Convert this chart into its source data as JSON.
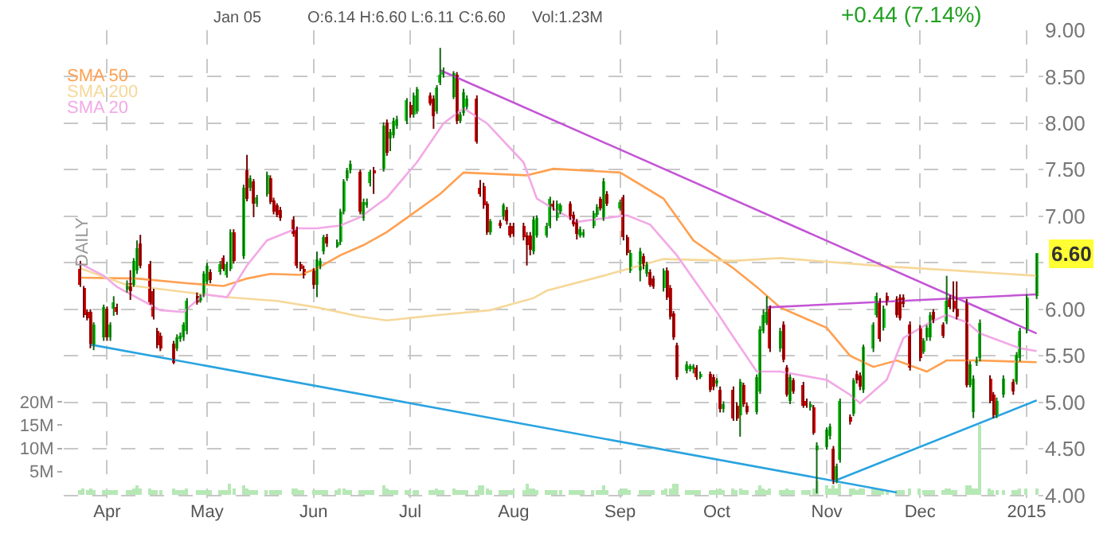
{
  "chart_data": {
    "type": "candlestick",
    "annotations": [
      "Jan 05",
      "O:6.14 H:6.60 L:6.11 C:6.60",
      "Vol:1.23M",
      "+0.44 (7.14%)",
      "DAILY",
      "6.60"
    ],
    "colors": [
      "#e00000",
      "#e00000",
      "#e00000",
      "#e00000",
      "#1fd21f",
      "#1fd21f",
      "#e00000",
      "#1fd21f",
      "#1fd21f",
      "#e00000",
      "#1fd21f",
      "#e00000",
      "#1fd21f",
      "#1fd21f",
      "#e00000",
      "#e00000",
      "#e00000",
      "#e00000",
      "#e00000",
      "#e00000",
      "#1fd21f",
      "#1fd21f",
      "#1fd21f",
      "#1fd21f",
      "#e00000",
      "#1fd21f",
      "#1fd21f",
      "#1fd21f",
      "#e00000",
      "#1fd21f",
      "#e00000",
      "#1fd21f",
      "#1fd21f",
      "#e00000",
      "#1fd21f",
      "#e00000",
      "#1fd21f",
      "#e00000",
      "#1fd21f",
      "#1fd21f",
      "#e00000",
      "#e00000",
      "#e00000",
      "#e00000",
      "#e00000",
      "#e00000",
      "#e00000",
      "#e00000",
      "#e00000",
      "#1fd21f",
      "#1fd21f",
      "#1fd21f",
      "#e00000",
      "#1fd21f",
      "#1fd21f",
      "#1fd21f",
      "#1fd21f",
      "#1fd21f",
      "#e00000",
      "#1fd21f",
      "#1fd21f",
      "#1fd21f",
      "#e00000",
      "#1fd21f",
      "#e00000",
      "#1fd21f",
      "#1fd21f",
      "#1fd21f",
      "#1fd21f",
      "#e00000",
      "#1fd21f",
      "#1fd21f",
      "#e00000",
      "#e00000",
      "#1fd21f",
      "#1fd21f",
      "#1fd21f",
      "#1fd21f",
      "#e00000",
      "#1fd21f",
      "#1fd21f",
      "#1fd21f",
      "#e00000",
      "#e00000",
      "#e00000",
      "#e00000",
      "#1fd21f",
      "#e00000",
      "#1fd21f",
      "#e00000",
      "#e00000",
      "#e00000",
      "#e00000",
      "#e00000",
      "#e00000",
      "#1fd21f",
      "#1fd21f",
      "#1fd21f",
      "#1fd21f",
      "#e00000",
      "#1fd21f",
      "#1fd21f",
      "#e00000",
      "#e00000",
      "#e00000",
      "#1fd21f",
      "#1fd21f",
      "#1fd21f",
      "#1fd21f",
      "#e00000",
      "#1fd21f",
      "#e00000",
      "#1fd21f",
      "#e00000",
      "#e00000",
      "#1fd21f",
      "#1fd21f",
      "#e00000",
      "#1fd21f",
      "#e00000",
      "#e00000",
      "#1fd21f",
      "#e00000",
      "#e00000",
      "#e00000",
      "#e00000",
      "#1fd21f",
      "#1fd21f",
      "#1fd21f",
      "#e00000",
      "#1fd21f",
      "#e00000",
      "#e00000",
      "#1fd21f",
      "#e00000",
      "#1fd21f",
      "#e00000",
      "#e00000",
      "#1fd21f",
      "#e00000",
      "#e00000",
      "#1fd21f",
      "#1fd21f",
      "#1fd21f",
      "#1fd21f",
      "#e00000",
      "#1fd21f",
      "#e00000",
      "#e00000",
      "#1fd21f",
      "#e00000",
      "#e00000",
      "#e00000",
      "#1fd21f",
      "#e00000",
      "#1fd21f",
      "#1fd21f",
      "#1fd21f",
      "#e00000",
      "#1fd21f",
      "#1fd21f",
      "#e00000",
      "#1fd21f",
      "#e00000",
      "#e00000",
      "#1fd21f",
      "#1fd21f",
      "#1fd21f",
      "#e00000",
      "#1fd21f",
      "#e00000",
      "#e00000",
      "#e00000",
      "#e00000",
      "#e00000",
      "#e00000",
      "#1fd21f",
      "#1fd21f",
      "#1fd21f",
      "#e00000",
      "#e00000",
      "#1fd21f",
      "#e00000",
      "#e00000",
      "#e00000",
      "#e00000",
      "#1fd21f",
      "#1fd21f",
      "#1fd21f",
      "#1fd21f",
      "#e00000",
      "#e00000",
      "#1fd21f",
      "#1fd21f",
      "#e00000",
      "#1fd21f",
      "#1fd21f",
      "#1fd21f",
      "#1fd21f"
    ],
    "x": [
      "2014-03-24",
      "2014-03-25",
      "2014-03-26",
      "2014-03-27",
      "2014-03-28",
      "2014-03-31",
      "2014-04-01",
      "2014-04-02",
      "2014-04-03",
      "2014-04-04",
      "2014-04-07",
      "2014-04-08",
      "2014-04-09",
      "2014-04-10",
      "2014-04-11",
      "2014-04-14",
      "2014-04-15",
      "2014-04-16",
      "2014-04-17",
      "2014-04-21",
      "2014-04-22",
      "2014-04-23",
      "2014-04-24",
      "2014-04-25",
      "2014-04-28",
      "2014-04-29",
      "2014-04-30",
      "2014-05-01",
      "2014-05-02",
      "2014-05-05",
      "2014-05-06",
      "2014-05-07",
      "2014-05-08",
      "2014-05-09",
      "2014-05-12",
      "2014-05-13",
      "2014-05-14",
      "2014-05-15",
      "2014-05-16",
      "2014-05-19",
      "2014-05-20",
      "2014-05-21",
      "2014-05-22",
      "2014-05-23",
      "2014-05-27",
      "2014-05-28",
      "2014-05-29",
      "2014-05-30",
      "2014-06-02",
      "2014-06-03",
      "2014-06-04",
      "2014-06-05",
      "2014-06-06",
      "2014-06-09",
      "2014-06-10",
      "2014-06-11",
      "2014-06-12",
      "2014-06-13",
      "2014-06-16",
      "2014-06-17",
      "2014-06-18",
      "2014-06-19",
      "2014-06-20",
      "2014-06-23",
      "2014-06-24",
      "2014-06-25",
      "2014-06-26",
      "2014-06-27",
      "2014-06-30",
      "2014-07-01",
      "2014-07-02",
      "2014-07-03",
      "2014-07-07",
      "2014-07-08",
      "2014-07-09",
      "2014-07-10",
      "2014-07-11",
      "2014-07-14",
      "2014-07-15",
      "2014-07-16",
      "2014-07-17",
      "2014-07-18",
      "2014-07-21",
      "2014-07-22",
      "2014-07-23",
      "2014-07-24",
      "2014-07-25",
      "2014-07-28",
      "2014-07-29",
      "2014-07-30",
      "2014-07-31",
      "2014-08-01",
      "2014-08-04",
      "2014-08-05",
      "2014-08-06",
      "2014-08-07",
      "2014-08-08",
      "2014-08-11",
      "2014-08-12",
      "2014-08-13",
      "2014-08-14",
      "2014-08-15",
      "2014-08-18",
      "2014-08-19",
      "2014-08-20",
      "2014-08-21",
      "2014-08-22",
      "2014-08-25",
      "2014-08-26",
      "2014-08-27",
      "2014-08-28",
      "2014-08-29",
      "2014-09-02",
      "2014-09-03",
      "2014-09-04",
      "2014-09-05",
      "2014-09-08",
      "2014-09-09",
      "2014-09-10",
      "2014-09-11",
      "2014-09-12",
      "2014-09-15",
      "2014-09-16",
      "2014-09-17",
      "2014-09-18",
      "2014-09-19",
      "2014-09-22",
      "2014-09-23",
      "2014-09-24",
      "2014-09-25",
      "2014-09-26",
      "2014-09-29",
      "2014-09-30",
      "2014-10-01",
      "2014-10-02",
      "2014-10-03",
      "2014-10-06",
      "2014-10-07",
      "2014-10-08",
      "2014-10-09",
      "2014-10-10",
      "2014-10-13",
      "2014-10-14",
      "2014-10-15",
      "2014-10-16",
      "2014-10-17",
      "2014-10-20",
      "2014-10-21",
      "2014-10-22",
      "2014-10-23",
      "2014-10-24",
      "2014-10-27",
      "2014-10-28",
      "2014-10-29",
      "2014-10-30",
      "2014-10-31",
      "2014-11-03",
      "2014-11-04",
      "2014-11-05",
      "2014-11-06",
      "2014-11-07",
      "2014-11-10",
      "2014-11-11",
      "2014-11-12",
      "2014-11-13",
      "2014-11-14",
      "2014-11-17",
      "2014-11-18",
      "2014-11-19",
      "2014-11-20",
      "2014-11-21",
      "2014-11-24",
      "2014-11-25",
      "2014-11-26",
      "2014-11-28",
      "2014-12-01",
      "2014-12-02",
      "2014-12-03",
      "2014-12-04",
      "2014-12-05",
      "2014-12-08",
      "2014-12-09",
      "2014-12-10",
      "2014-12-11",
      "2014-12-12",
      "2014-12-15",
      "2014-12-16",
      "2014-12-17",
      "2014-12-18",
      "2014-12-19",
      "2014-12-22",
      "2014-12-23",
      "2014-12-24",
      "2014-12-26",
      "2014-12-29",
      "2014-12-30",
      "2014-12-31",
      "2015-01-02",
      "2015-01-05"
    ],
    "ohlc": [
      [
        6.44,
        6.52,
        6.24,
        6.27
      ],
      [
        6.22,
        6.25,
        5.91,
        5.94
      ],
      [
        5.97,
        6.0,
        5.88,
        5.91
      ],
      [
        5.97,
        6.0,
        5.58,
        5.63
      ],
      [
        5.61,
        5.86,
        5.56,
        5.83
      ],
      [
        5.69,
        6.05,
        5.66,
        6.02
      ],
      [
        6.0,
        6.03,
        5.66,
        5.69
      ],
      [
        5.69,
        5.86,
        5.66,
        5.83
      ],
      [
        6.01,
        6.14,
        5.93,
        6.08
      ],
      [
        6.03,
        6.06,
        5.94,
        5.97
      ],
      [
        6.21,
        6.31,
        6.18,
        6.28
      ],
      [
        6.28,
        6.42,
        6.1,
        6.19
      ],
      [
        6.27,
        6.55,
        6.24,
        6.52
      ],
      [
        6.41,
        6.74,
        6.38,
        6.66
      ],
      [
        6.7,
        6.8,
        6.44,
        6.47
      ],
      [
        6.49,
        6.52,
        6.05,
        6.08
      ],
      [
        6.19,
        6.22,
        5.89,
        5.92
      ],
      [
        5.77,
        5.8,
        5.58,
        5.61
      ],
      [
        5.72,
        5.75,
        5.55,
        5.58
      ],
      [
        5.63,
        5.66,
        5.41,
        5.43
      ],
      [
        5.58,
        5.73,
        5.55,
        5.7
      ],
      [
        5.68,
        5.75,
        5.65,
        5.72
      ],
      [
        5.69,
        5.86,
        5.66,
        5.83
      ],
      [
        5.76,
        6.12,
        5.73,
        6.09
      ],
      [
        6.15,
        6.18,
        6.05,
        6.08
      ],
      [
        6.1,
        6.16,
        6.07,
        6.13
      ],
      [
        6.16,
        6.41,
        6.13,
        6.38
      ],
      [
        6.3,
        6.5,
        6.27,
        6.47
      ],
      [
        6.4,
        6.43,
        6.28,
        6.31
      ],
      [
        6.4,
        6.52,
        6.37,
        6.49
      ],
      [
        6.55,
        6.58,
        6.41,
        6.44
      ],
      [
        6.37,
        6.51,
        6.34,
        6.48
      ],
      [
        6.44,
        6.86,
        6.41,
        6.83
      ],
      [
        6.83,
        6.86,
        6.49,
        6.52
      ],
      [
        6.57,
        7.34,
        6.54,
        7.31
      ],
      [
        7.5,
        7.66,
        7.16,
        7.19
      ],
      [
        7.3,
        7.44,
        7.27,
        7.41
      ],
      [
        7.37,
        7.4,
        6.99,
        7.13
      ],
      [
        7.13,
        7.23,
        7.1,
        7.2
      ],
      [
        7.24,
        7.48,
        7.21,
        7.45
      ],
      [
        7.41,
        7.44,
        7.13,
        7.16
      ],
      [
        7.17,
        7.2,
        7.02,
        7.05
      ],
      [
        7.11,
        7.14,
        6.99,
        7.02
      ],
      [
        7.07,
        7.1,
        6.95,
        6.98
      ],
      [
        6.97,
        7.0,
        6.78,
        6.81
      ],
      [
        6.86,
        6.89,
        6.44,
        6.47
      ],
      [
        6.48,
        6.51,
        6.41,
        6.44
      ],
      [
        6.44,
        6.47,
        6.33,
        6.36
      ],
      [
        6.41,
        6.44,
        6.22,
        6.27
      ],
      [
        6.27,
        6.62,
        6.13,
        6.53
      ],
      [
        6.46,
        6.55,
        6.43,
        6.52
      ],
      [
        6.62,
        6.8,
        6.59,
        6.77
      ],
      [
        6.78,
        6.81,
        6.67,
        6.7
      ],
      [
        6.69,
        6.75,
        6.66,
        6.72
      ],
      [
        6.72,
        7.08,
        6.69,
        7.05
      ],
      [
        7.05,
        7.4,
        7.02,
        7.37
      ],
      [
        7.41,
        7.52,
        7.38,
        7.49
      ],
      [
        7.49,
        7.6,
        7.46,
        7.57
      ],
      [
        7.47,
        7.5,
        7.02,
        7.05
      ],
      [
        6.98,
        7.19,
        6.95,
        7.16
      ],
      [
        7.12,
        7.19,
        7.09,
        7.16
      ],
      [
        7.35,
        7.5,
        7.32,
        7.47
      ],
      [
        7.5,
        7.53,
        7.24,
        7.46
      ],
      [
        7.51,
        8.01,
        7.48,
        7.98
      ],
      [
        8.01,
        8.04,
        7.65,
        7.68
      ],
      [
        7.83,
        7.94,
        7.7,
        7.91
      ],
      [
        7.87,
        8.06,
        7.84,
        8.03
      ],
      [
        7.97,
        8.08,
        7.94,
        8.05
      ],
      [
        8.02,
        8.27,
        7.99,
        8.24
      ],
      [
        8.2,
        8.23,
        8.06,
        8.09
      ],
      [
        8.09,
        8.33,
        8.06,
        8.3
      ],
      [
        8.13,
        8.39,
        8.1,
        8.36
      ],
      [
        8.3,
        8.33,
        8.19,
        8.22
      ],
      [
        8.27,
        8.3,
        7.94,
        8.08
      ],
      [
        8.13,
        8.41,
        8.1,
        8.38
      ],
      [
        8.44,
        8.81,
        8.41,
        8.52
      ],
      [
        8.52,
        8.6,
        8.49,
        8.57
      ],
      [
        8.29,
        8.56,
        8.26,
        8.53
      ],
      [
        8.52,
        8.55,
        7.99,
        8.02
      ],
      [
        8.03,
        8.12,
        8.0,
        8.09
      ],
      [
        8.11,
        8.37,
        8.08,
        8.34
      ],
      [
        8.18,
        8.3,
        8.15,
        8.27
      ],
      [
        8.27,
        8.3,
        7.78,
        7.81
      ],
      [
        7.31,
        7.39,
        7.21,
        7.24
      ],
      [
        7.33,
        7.36,
        7.08,
        7.11
      ],
      [
        7.13,
        7.16,
        6.8,
        6.83
      ],
      [
        6.83,
        6.97,
        6.8,
        6.94
      ],
      [
        6.93,
        6.96,
        6.87,
        6.9
      ],
      [
        6.99,
        7.14,
        6.96,
        7.11
      ],
      [
        7.07,
        7.1,
        6.91,
        6.94
      ],
      [
        6.9,
        6.93,
        6.77,
        6.8
      ],
      [
        6.9,
        6.93,
        6.78,
        6.81
      ],
      [
        6.9,
        6.93,
        6.74,
        6.77
      ],
      [
        6.8,
        6.83,
        6.47,
        6.69
      ],
      [
        6.8,
        6.83,
        6.58,
        6.64
      ],
      [
        6.62,
        7.0,
        6.59,
        6.97
      ],
      [
        6.8,
        7.01,
        6.77,
        6.98
      ],
      [
        6.8,
        6.93,
        6.77,
        6.9
      ],
      [
        6.9,
        7.21,
        6.87,
        7.18
      ],
      [
        7.14,
        7.17,
        7.06,
        7.09
      ],
      [
        6.98,
        7.17,
        6.95,
        7.14
      ],
      [
        7.05,
        7.14,
        7.02,
        7.11
      ],
      [
        7.13,
        7.16,
        6.96,
        6.99
      ],
      [
        7.02,
        7.05,
        6.89,
        6.92
      ],
      [
        6.94,
        6.97,
        6.75,
        6.81
      ],
      [
        6.8,
        6.89,
        6.77,
        6.86
      ],
      [
        6.8,
        6.86,
        6.77,
        6.83
      ],
      [
        6.9,
        7.06,
        6.87,
        7.03
      ],
      [
        7.02,
        7.13,
        6.99,
        7.1
      ],
      [
        7.18,
        7.21,
        7.06,
        7.09
      ],
      [
        6.98,
        7.41,
        6.95,
        7.38
      ],
      [
        7.24,
        7.27,
        7.11,
        7.14
      ],
      [
        7.09,
        7.18,
        7.06,
        7.15
      ],
      [
        7.2,
        7.23,
        6.74,
        6.77
      ],
      [
        6.77,
        6.8,
        6.58,
        6.61
      ],
      [
        6.42,
        6.64,
        6.39,
        6.61
      ],
      [
        6.42,
        6.66,
        6.3,
        6.63
      ],
      [
        6.57,
        6.6,
        6.43,
        6.46
      ],
      [
        6.38,
        6.51,
        6.35,
        6.48
      ],
      [
        6.4,
        6.43,
        6.24,
        6.27
      ],
      [
        6.33,
        6.36,
        6.22,
        6.25
      ],
      [
        6.22,
        6.44,
        6.19,
        6.41
      ],
      [
        6.42,
        6.45,
        6.1,
        6.13
      ],
      [
        6.23,
        6.26,
        5.89,
        5.92
      ],
      [
        5.95,
        5.98,
        5.67,
        5.7
      ],
      [
        5.61,
        5.64,
        5.24,
        5.27
      ],
      [
        5.34,
        5.44,
        5.31,
        5.41
      ],
      [
        5.36,
        5.41,
        5.33,
        5.38
      ],
      [
        5.36,
        5.41,
        5.31,
        5.38
      ],
      [
        5.37,
        5.4,
        5.24,
        5.27
      ],
      [
        5.28,
        5.33,
        5.25,
        5.3
      ],
      [
        5.3,
        5.33,
        5.11,
        5.14
      ],
      [
        5.27,
        5.3,
        5.13,
        5.16
      ],
      [
        5.2,
        5.26,
        5.17,
        5.24
      ],
      [
        5.14,
        5.17,
        4.89,
        4.92
      ],
      [
        4.92,
        5.01,
        4.89,
        4.98
      ],
      [
        5.14,
        5.17,
        4.8,
        4.83
      ],
      [
        4.97,
        5.0,
        4.8,
        4.83
      ],
      [
        4.86,
        5.25,
        4.63,
        5.22
      ],
      [
        5.18,
        5.21,
        4.95,
        4.98
      ],
      [
        4.97,
        5.0,
        4.87,
        4.9
      ],
      [
        4.9,
        5.3,
        4.87,
        5.27
      ],
      [
        5.12,
        5.82,
        5.09,
        5.79
      ],
      [
        5.77,
        6.0,
        5.74,
        5.94
      ],
      [
        5.86,
        6.14,
        5.83,
        5.98
      ],
      [
        6.01,
        6.04,
        5.54,
        5.57
      ],
      [
        5.57,
        5.8,
        5.54,
        5.77
      ],
      [
        5.84,
        5.87,
        5.43,
        5.46
      ],
      [
        5.37,
        5.4,
        5.06,
        5.09
      ],
      [
        5.01,
        5.3,
        4.98,
        5.27
      ],
      [
        5.23,
        5.26,
        5.09,
        5.12
      ],
      [
        5.19,
        5.22,
        4.94,
        4.97
      ],
      [
        5.01,
        5.04,
        4.94,
        4.97
      ],
      [
        4.94,
        5.01,
        4.91,
        4.98
      ],
      [
        4.94,
        4.97,
        4.65,
        4.68
      ],
      [
        4.48,
        4.57,
        4.02,
        4.54
      ],
      [
        4.52,
        4.73,
        4.49,
        4.7
      ],
      [
        4.63,
        4.77,
        4.6,
        4.74
      ],
      [
        4.5,
        4.53,
        4.12,
        4.15
      ],
      [
        4.16,
        4.34,
        4.13,
        4.31
      ],
      [
        4.38,
        5.04,
        4.35,
        5.01
      ],
      [
        4.84,
        4.87,
        4.76,
        4.79
      ],
      [
        4.88,
        5.26,
        4.85,
        5.23
      ],
      [
        5.31,
        5.34,
        5.2,
        5.23
      ],
      [
        5.29,
        5.32,
        5.13,
        5.16
      ],
      [
        5.13,
        5.62,
        5.1,
        5.59
      ],
      [
        5.57,
        5.86,
        5.54,
        5.83
      ],
      [
        5.94,
        6.18,
        5.91,
        6.15
      ],
      [
        6.09,
        6.12,
        5.65,
        5.68
      ],
      [
        5.8,
        6.04,
        5.77,
        6.01
      ],
      [
        6.15,
        6.18,
        6.04,
        6.07
      ],
      [
        6.11,
        6.14,
        5.91,
        5.94
      ],
      [
        6.13,
        6.16,
        5.88,
        5.91
      ],
      [
        6.13,
        6.16,
        6.02,
        6.05
      ],
      [
        5.84,
        5.87,
        5.34,
        5.37
      ],
      [
        5.8,
        5.83,
        5.44,
        5.47
      ],
      [
        5.55,
        5.69,
        5.52,
        5.66
      ],
      [
        5.69,
        5.83,
        5.66,
        5.8
      ],
      [
        5.69,
        5.97,
        5.66,
        5.94
      ],
      [
        5.97,
        6.0,
        5.85,
        5.88
      ],
      [
        5.83,
        5.86,
        5.69,
        5.72
      ],
      [
        5.87,
        6.36,
        5.84,
        6.09
      ],
      [
        6.12,
        6.15,
        6.0,
        6.03
      ],
      [
        6.09,
        6.3,
        5.97,
        6.0
      ],
      [
        6.01,
        6.3,
        5.89,
        5.92
      ],
      [
        6.08,
        6.11,
        5.16,
        5.19
      ],
      [
        5.19,
        5.44,
        5.16,
        5.41
      ],
      [
        4.9,
        5.29,
        4.83,
        5.26
      ],
      [
        5.42,
        5.49,
        5.39,
        5.46
      ],
      [
        5.47,
        5.89,
        5.44,
        5.86
      ],
      [
        5.26,
        5.29,
        4.99,
        5.02
      ],
      [
        5.08,
        5.11,
        4.83,
        4.86
      ],
      [
        4.86,
        5.05,
        4.83,
        5.02
      ],
      [
        5.08,
        5.29,
        5.05,
        5.26
      ],
      [
        5.22,
        5.25,
        5.08,
        5.11
      ],
      [
        5.22,
        5.54,
        5.19,
        5.51
      ],
      [
        5.47,
        5.8,
        5.44,
        5.77
      ],
      [
        5.77,
        6.16,
        5.74,
        6.13
      ],
      [
        6.14,
        6.6,
        6.11,
        6.6
      ]
    ],
    "series": [
      {
        "type": "bar",
        "axis": "y2",
        "color": "#b6e8b6",
        "values": [
          1,
          1.5,
          1,
          1.5,
          1,
          1,
          1,
          1,
          1,
          1,
          1,
          1,
          1.5,
          2,
          1.5,
          1.5,
          1,
          1,
          1,
          1.5,
          1,
          1,
          1,
          1.5,
          1,
          1,
          1,
          1,
          1,
          1,
          1,
          1,
          2.5,
          1.5,
          2,
          1.5,
          1,
          1,
          1,
          1,
          1,
          1,
          1,
          1,
          1.5,
          1.5,
          1,
          1,
          1,
          1,
          1,
          1,
          1,
          1,
          1.5,
          1.5,
          1,
          1,
          1,
          1,
          1,
          1,
          1,
          2,
          1.5,
          1,
          1,
          1,
          1,
          1,
          1,
          1,
          1,
          1,
          1.5,
          1,
          1,
          1.5,
          1,
          1,
          1,
          1,
          1,
          2,
          2,
          1.5,
          1,
          1,
          1,
          1,
          1,
          1,
          1,
          2.5,
          1.5,
          1.5,
          1,
          1,
          1,
          1,
          1,
          1,
          1,
          1,
          1,
          1,
          1,
          1,
          1,
          1,
          2,
          1,
          1,
          1.5,
          1.5,
          1,
          1,
          1,
          1,
          1,
          1,
          1,
          1.5,
          1.5,
          2.5,
          2.5,
          1,
          1,
          1,
          1,
          1,
          1,
          1,
          1,
          1.5,
          1,
          1.5,
          1,
          1.5,
          1,
          1,
          1,
          2,
          1.5,
          1,
          1.5,
          1,
          1,
          1.5,
          1,
          1,
          1,
          1,
          1,
          1.5,
          3,
          2,
          1.5,
          2,
          1.5,
          2.5,
          1.5,
          1.5,
          1,
          1.5,
          1.5,
          1.5,
          1.5,
          1.5,
          1,
          1,
          1,
          1,
          1,
          1.5,
          1.5,
          1,
          1,
          1,
          1,
          1,
          1.5,
          1.5,
          1,
          1,
          2,
          2,
          1.5,
          1.5,
          15,
          1.5,
          1,
          1,
          1,
          1,
          1,
          1.5,
          1.5,
          1.2
        ]
      },
      {
        "type": "line",
        "name": "SMA 50",
        "color": "#ffa050",
        "x": [
          "2014-03-24",
          "2014-04-10",
          "2014-04-25",
          "2014-05-06",
          "2014-05-13",
          "2014-05-20",
          "2014-05-29",
          "2014-06-03",
          "2014-06-10",
          "2014-06-17",
          "2014-06-24",
          "2014-07-10",
          "2014-07-17",
          "2014-08-05",
          "2014-08-13",
          "2014-09-02",
          "2014-09-15",
          "2014-09-24",
          "2014-10-06",
          "2014-10-13",
          "2014-10-20",
          "2014-11-03",
          "2014-11-10",
          "2014-11-17",
          "2014-11-24",
          "2014-12-03",
          "2014-12-09",
          "2014-12-18",
          "2015-01-05"
        ],
        "values": [
          6.34,
          6.33,
          6.28,
          6.25,
          6.33,
          6.38,
          6.37,
          6.44,
          6.58,
          6.69,
          6.83,
          7.24,
          7.47,
          7.44,
          7.51,
          7.47,
          7.19,
          6.74,
          6.44,
          6.24,
          6.02,
          5.8,
          5.5,
          5.38,
          5.45,
          5.33,
          5.45,
          5.45,
          5.43
        ]
      },
      {
        "type": "line",
        "name": "SMA 200",
        "color": "#f6d89a",
        "x": [
          "2014-03-24",
          "2014-04-07",
          "2014-05-07",
          "2014-05-22",
          "2014-06-03",
          "2014-06-16",
          "2014-06-24",
          "2014-07-10",
          "2014-07-25",
          "2014-08-07",
          "2014-08-11",
          "2014-08-28",
          "2014-09-08",
          "2014-09-15",
          "2014-10-06",
          "2014-10-20",
          "2014-11-21",
          "2014-12-10",
          "2015-01-05"
        ],
        "values": [
          6.44,
          6.26,
          6.13,
          6.09,
          6.02,
          5.92,
          5.88,
          5.94,
          5.99,
          6.12,
          6.2,
          6.36,
          6.47,
          6.54,
          6.52,
          6.55,
          6.46,
          6.42,
          6.36
        ]
      },
      {
        "type": "line",
        "name": "SMA 20",
        "color": "#f2a9e6",
        "x": [
          "2014-03-24",
          "2014-03-31",
          "2014-04-04",
          "2014-04-17",
          "2014-04-24",
          "2014-04-30",
          "2014-05-07",
          "2014-05-13",
          "2014-05-19",
          "2014-05-28",
          "2014-06-03",
          "2014-06-10",
          "2014-06-16",
          "2014-06-24",
          "2014-07-03",
          "2014-07-11",
          "2014-07-17",
          "2014-07-24",
          "2014-08-04",
          "2014-08-08",
          "2014-08-13",
          "2014-08-20",
          "2014-09-04",
          "2014-09-11",
          "2014-09-19",
          "2014-10-01",
          "2014-10-06",
          "2014-10-13",
          "2014-10-20",
          "2014-11-03",
          "2014-11-10",
          "2014-11-13",
          "2014-11-21",
          "2014-11-26",
          "2014-12-04",
          "2014-12-09",
          "2014-12-15",
          "2014-12-19",
          "2014-12-31",
          "2015-01-05"
        ],
        "values": [
          6.49,
          6.36,
          6.24,
          5.99,
          5.97,
          6.16,
          6.13,
          6.47,
          6.74,
          6.87,
          6.87,
          6.9,
          6.99,
          7.2,
          7.58,
          8.0,
          8.16,
          8.0,
          7.58,
          7.19,
          7.08,
          6.94,
          7.01,
          6.91,
          6.58,
          5.97,
          5.7,
          5.33,
          5.33,
          5.24,
          5.08,
          4.99,
          5.24,
          5.69,
          5.86,
          5.94,
          5.86,
          5.74,
          5.58,
          5.55
        ]
      },
      {
        "type": "line",
        "color": "#29a3e0",
        "x": [
          "2014-03-27",
          "2014-11-24"
        ],
        "values": [
          5.62,
          4.03
        ]
      },
      {
        "type": "line",
        "color": "#29a3e0",
        "x": [
          "2014-11-05",
          "2015-01-05"
        ],
        "values": [
          4.15,
          5.02
        ]
      },
      {
        "type": "line",
        "color": "#c455d6",
        "x": [
          "2014-07-10",
          "2015-01-05"
        ],
        "values": [
          8.57,
          5.74
        ]
      },
      {
        "type": "line",
        "color": "#c455d6",
        "x": [
          "2014-10-16",
          "2015-01-05"
        ],
        "values": [
          6.02,
          6.16
        ]
      }
    ],
    "xlim": [
      "2014-03-19",
      "2015-01-07"
    ],
    "xticks": [
      {
        "value": "2014-04-01",
        "label": "Apr"
      },
      {
        "value": "2014-05-01",
        "label": "May"
      },
      {
        "value": "2014-06-02",
        "label": "Jun"
      },
      {
        "value": "2014-07-01",
        "label": "Jul"
      },
      {
        "value": "2014-08-01",
        "label": "Aug"
      },
      {
        "value": "2014-09-02",
        "label": "Sep"
      },
      {
        "value": "2014-10-01",
        "label": "Oct"
      },
      {
        "value": "2014-11-03",
        "label": "Nov"
      },
      {
        "value": "2014-12-01",
        "label": "Dec"
      },
      {
        "value": "2015-01-02",
        "label": "2015"
      }
    ],
    "ylim": [
      3.97,
      9.0
    ],
    "yticks": [
      {
        "value": 4,
        "label": "4.00"
      },
      {
        "value": 4.5,
        "label": "4.50"
      },
      {
        "value": 5,
        "label": "5.00"
      },
      {
        "value": 5.5,
        "label": "5.50"
      },
      {
        "value": 6,
        "label": "6.00"
      },
      {
        "value": 6.5,
        "label": null
      },
      {
        "value": 7,
        "label": "7.00"
      },
      {
        "value": 7.5,
        "label": "7.50"
      },
      {
        "value": 8,
        "label": "8.00"
      },
      {
        "value": 8.5,
        "label": "8.50"
      },
      {
        "value": 9,
        "label": "9.00"
      }
    ],
    "y2lim": [
      -0.7,
      100
    ],
    "y2ticks": [
      {
        "value": 5,
        "label": "5M"
      },
      {
        "value": 10,
        "label": "10M"
      },
      {
        "value": 15,
        "label": "15M"
      },
      {
        "value": 20,
        "label": "20M"
      }
    ],
    "grid": true
  }
}
